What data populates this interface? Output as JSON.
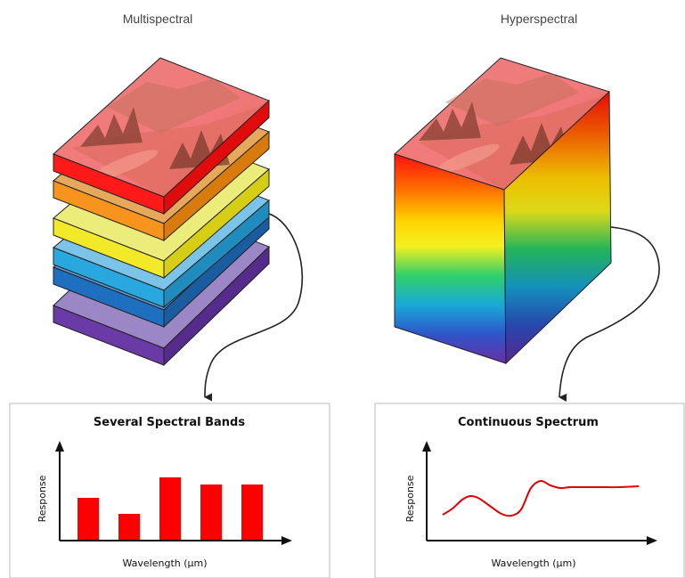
{
  "left": {
    "heading": "Multispectral",
    "chart": {
      "title": "Several Spectral Bands",
      "ylabel": "Response",
      "xlabel": "Wavelength (μm)"
    }
  },
  "right": {
    "heading": "Hyperspectral",
    "chart": {
      "title": "Continuous Spectrum",
      "ylabel": "Response",
      "xlabel": "Wavelength (μm)"
    }
  },
  "colors": {
    "band_red": "#ff1a1a",
    "band_orange": "#f7941d",
    "band_yellow": "#f2ea28",
    "band_cyan": "#29a8e0",
    "band_blue": "#1f6fc1",
    "band_purple": "#6a3aa6",
    "bar_fill": "#ff0000",
    "curve": "#e00000"
  },
  "chart_data": [
    {
      "type": "bar",
      "title": "Several Spectral Bands",
      "xlabel": "Wavelength (μm)",
      "ylabel": "Response",
      "categories": [
        "",
        "",
        "",
        "",
        ""
      ],
      "values": [
        0.47,
        0.29,
        0.7,
        0.62,
        0.62
      ],
      "ylim": [
        0,
        1
      ],
      "grid": false
    },
    {
      "type": "line",
      "title": "Continuous Spectrum",
      "xlabel": "Wavelength (μm)",
      "ylabel": "Response",
      "x": [
        0.0,
        0.05,
        0.1,
        0.14,
        0.18,
        0.24,
        0.3,
        0.35,
        0.4,
        0.45,
        0.5,
        0.55,
        0.6,
        0.65,
        0.7,
        0.8,
        0.9,
        1.0
      ],
      "y": [
        0.28,
        0.35,
        0.45,
        0.49,
        0.47,
        0.38,
        0.29,
        0.27,
        0.34,
        0.58,
        0.66,
        0.61,
        0.58,
        0.59,
        0.59,
        0.59,
        0.59,
        0.6
      ],
      "xlim": [
        0,
        1
      ],
      "ylim": [
        0,
        1
      ],
      "grid": false
    }
  ]
}
